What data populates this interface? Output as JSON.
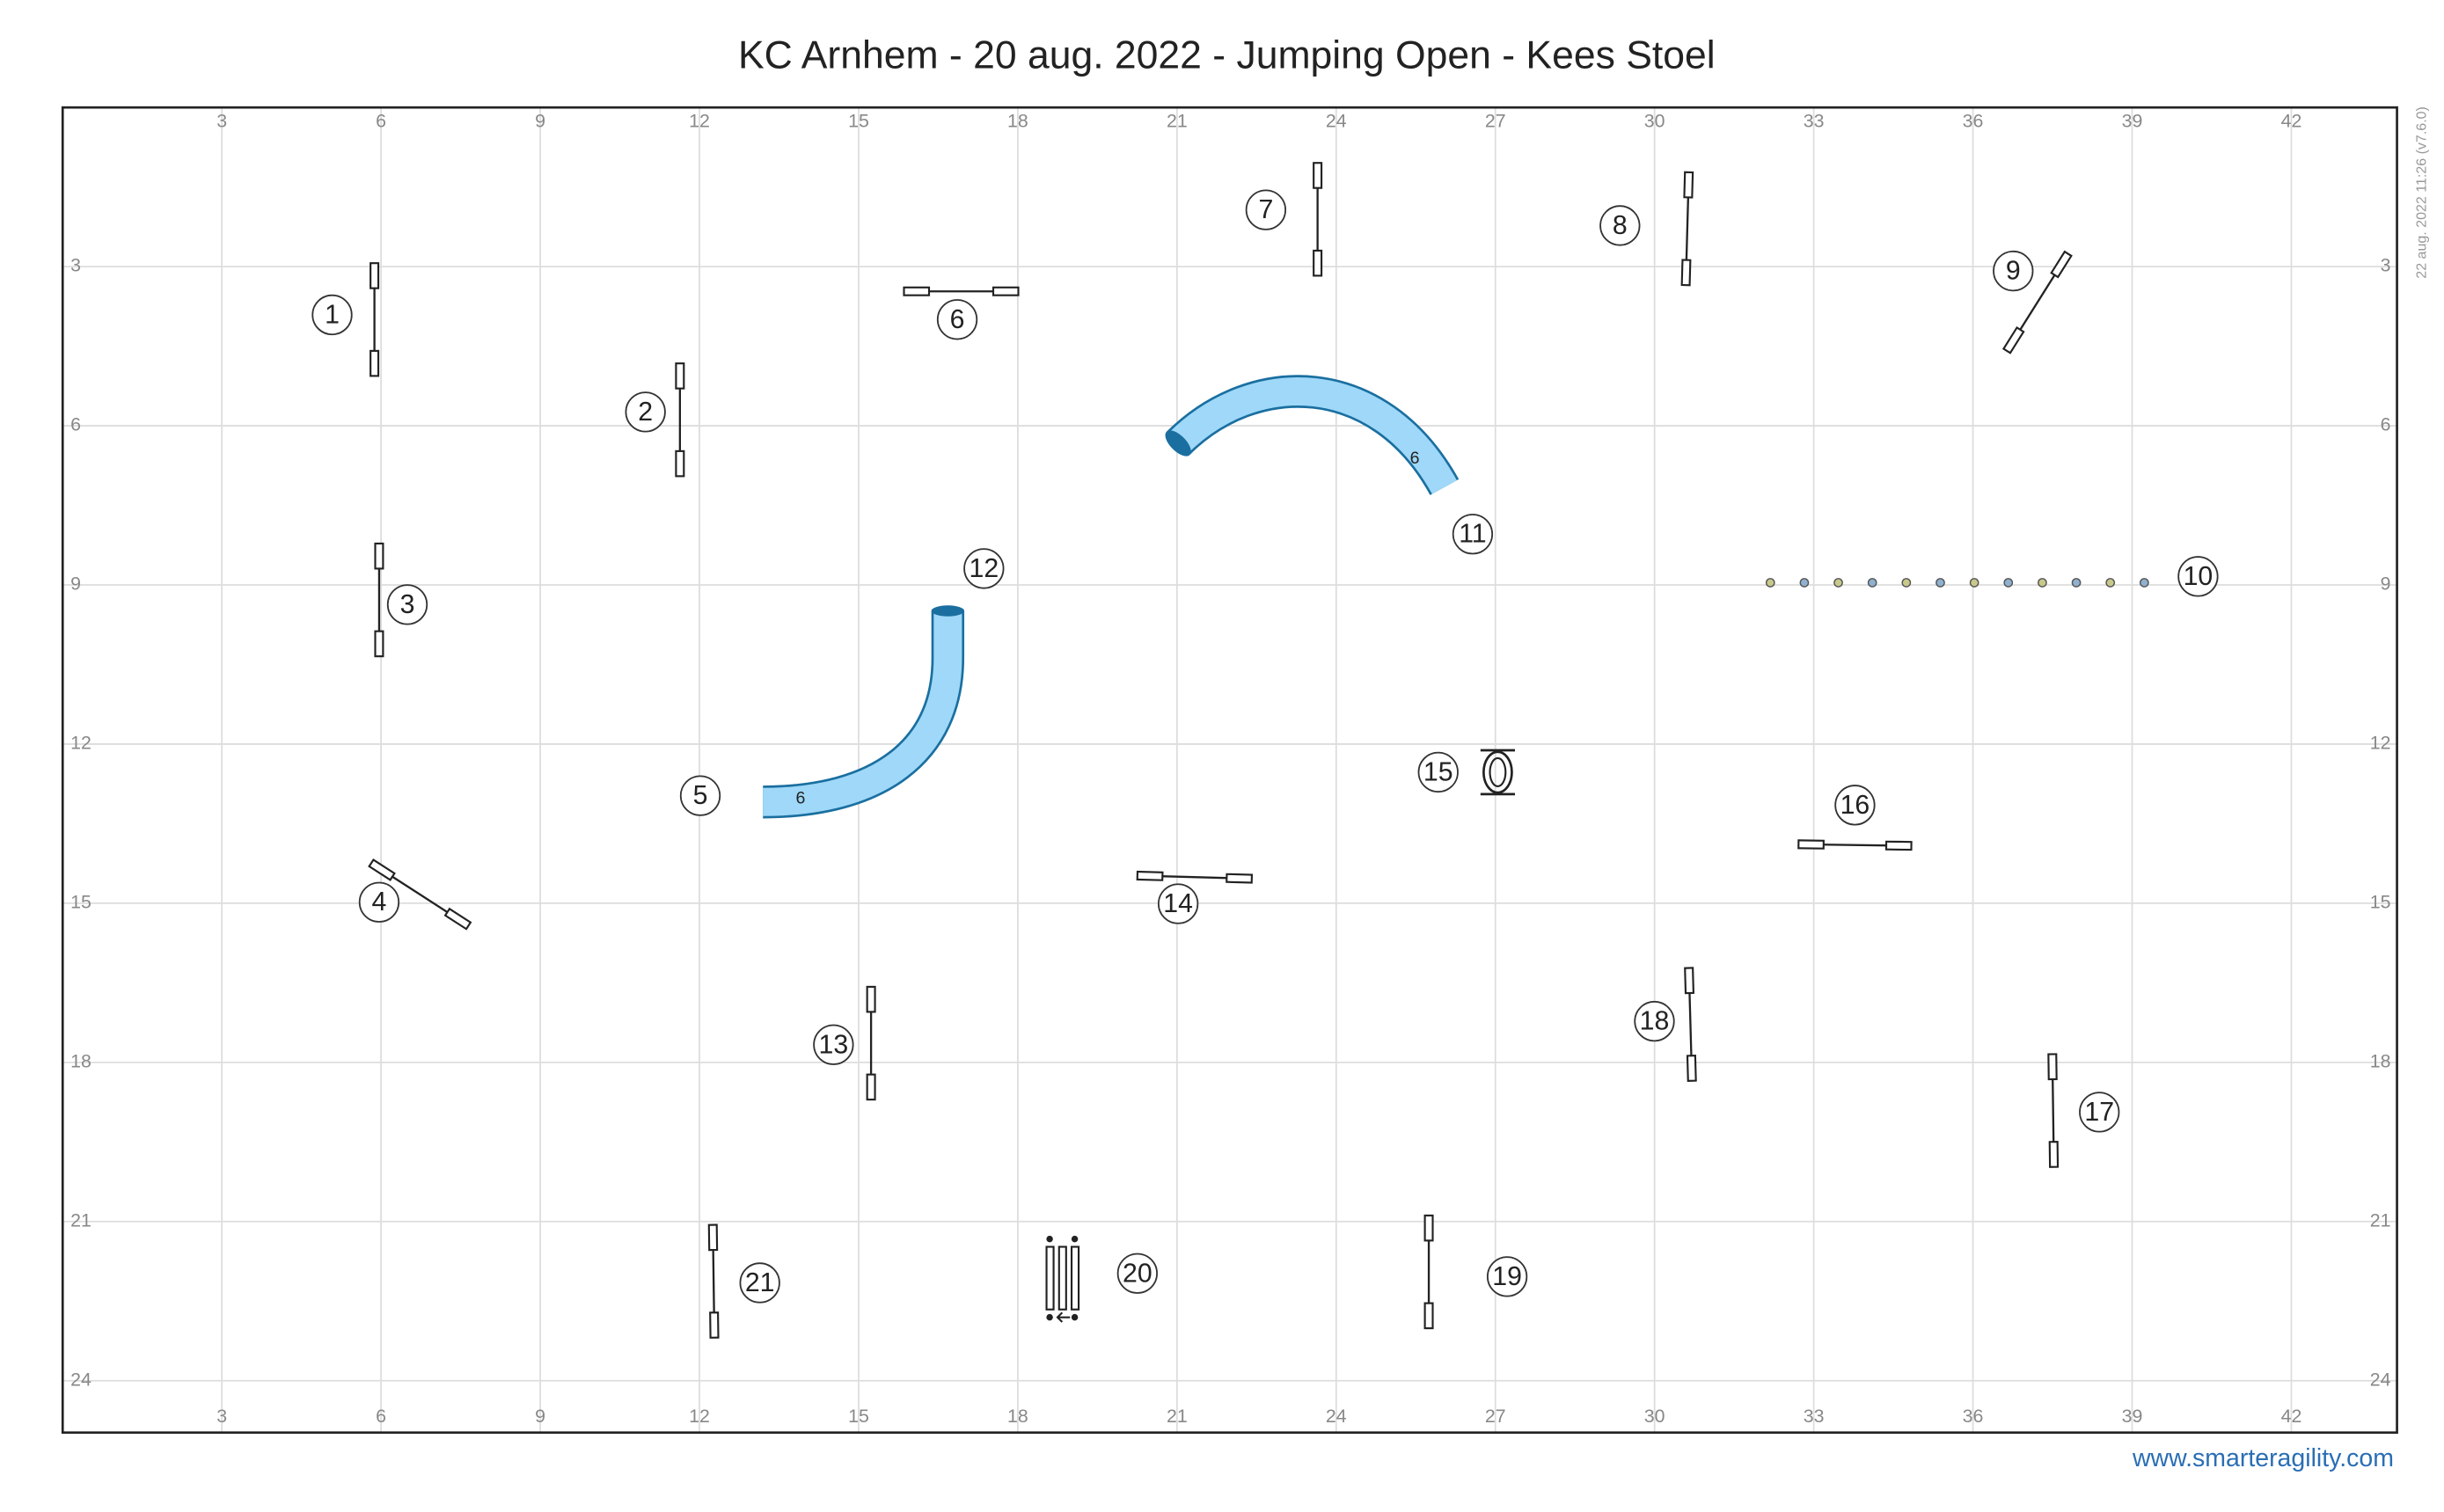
{
  "title": "KC Arnhem - 20 aug. 2022 - Jumping Open - Kees Stoel",
  "x_ticks": [
    3,
    6,
    9,
    12,
    15,
    18,
    21,
    24,
    27,
    30,
    33,
    36,
    39,
    42
  ],
  "y_ticks": [
    3,
    6,
    9,
    12,
    15,
    18,
    21,
    24
  ],
  "obstacles": [
    "1",
    "2",
    "3",
    "4",
    "5",
    "6",
    "7",
    "8",
    "9",
    "10",
    "11",
    "12",
    "13",
    "14",
    "15",
    "16",
    "17",
    "18",
    "19",
    "20",
    "21"
  ],
  "tunnel_labels": [
    "6",
    "6"
  ],
  "timestamp": "22 aug. 2022 11:26  (v7.6.0)",
  "link": "www.smarteragility.com"
}
